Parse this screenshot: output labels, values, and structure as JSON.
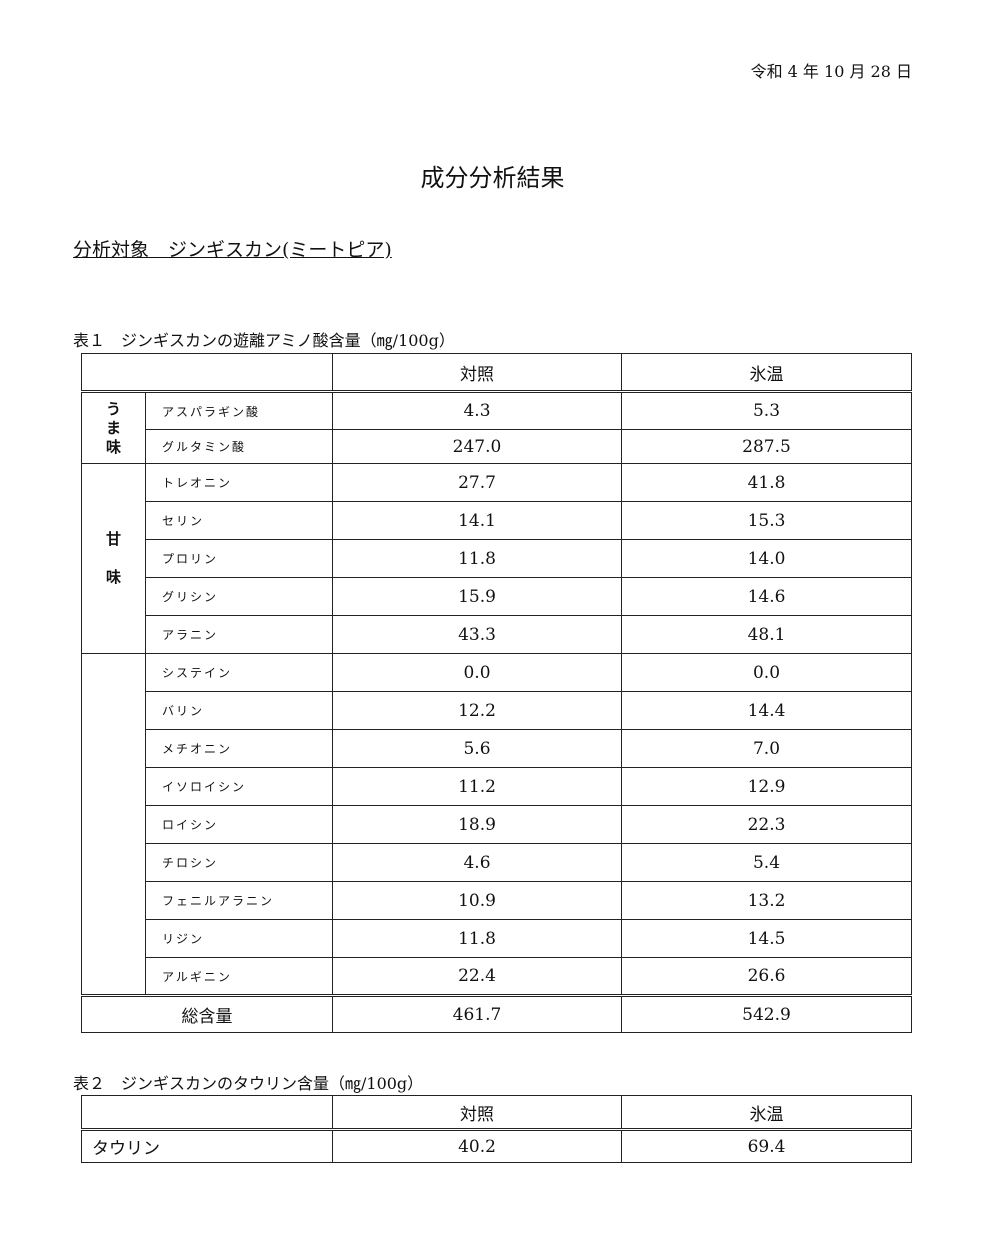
{
  "date": "令和 4 年 10 月 28 日",
  "title": "成分分析結果",
  "subject": "分析対象　ジンギスカン(ミートピア)",
  "table1": {
    "caption": "表１　ジンギスカンの遊離アミノ酸含量（㎎/100g）",
    "columns": [
      "対照",
      "氷温"
    ],
    "groups": [
      {
        "label": "う\nま\n味",
        "rows": [
          [
            "アスパラギン酸",
            "4.3",
            "5.3"
          ],
          [
            "グルタミン酸",
            "247.0",
            "287.5"
          ]
        ]
      },
      {
        "label": "甘\n\n味",
        "rows": [
          [
            "トレオニン",
            "27.7",
            "41.8"
          ],
          [
            "セリン",
            "14.1",
            "15.3"
          ],
          [
            "プロリン",
            "11.8",
            "14.0"
          ],
          [
            "グリシン",
            "15.9",
            "14.6"
          ],
          [
            "アラニン",
            "43.3",
            "48.1"
          ]
        ]
      },
      {
        "label": "",
        "rows": [
          [
            "システイン",
            "0.0",
            "0.0"
          ],
          [
            "バリン",
            "12.2",
            "14.4"
          ],
          [
            "メチオニン",
            "5.6",
            "7.0"
          ],
          [
            "イソロイシン",
            "11.2",
            "12.9"
          ],
          [
            "ロイシン",
            "18.9",
            "22.3"
          ],
          [
            "チロシン",
            "4.6",
            "5.4"
          ],
          [
            "フェニルアラニン",
            "10.9",
            "13.2"
          ],
          [
            "リジン",
            "11.8",
            "14.5"
          ],
          [
            "アルギニン",
            "22.4",
            "26.6"
          ]
        ]
      }
    ],
    "total": {
      "label": "総含量",
      "values": [
        "461.7",
        "542.9"
      ]
    }
  },
  "table2": {
    "caption": "表２　ジンギスカンのタウリン含量（㎎/100g）",
    "columns": [
      "対照",
      "氷温"
    ],
    "row": {
      "label": "タウリン",
      "values": [
        "40.2",
        "69.4"
      ]
    }
  }
}
